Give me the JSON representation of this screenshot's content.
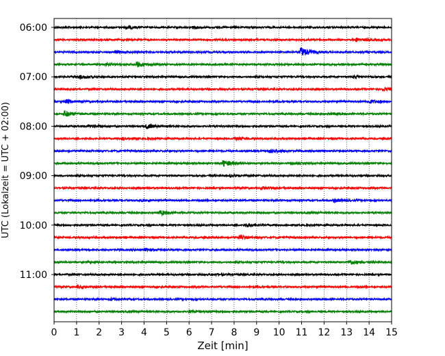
{
  "chart_data": {
    "type": "line",
    "title": "",
    "xlabel": "Zeit  [min]",
    "ylabel": "UTC (Lokalzeit = UTC + 02:00)",
    "xlim": [
      0,
      15
    ],
    "x_ticks": [
      0,
      1,
      2,
      3,
      4,
      5,
      6,
      7,
      8,
      9,
      10,
      11,
      12,
      13,
      14,
      15
    ],
    "x_grid": true,
    "y_tick_labels": [
      "06:00",
      "07:00",
      "08:00",
      "09:00",
      "10:00",
      "11:00"
    ],
    "trace_interval_min": 15,
    "colors": [
      "#000000",
      "#ff0000",
      "#0000ff",
      "#008000"
    ],
    "series": [
      {
        "start": "06:00",
        "color": "#000000",
        "events": [
          {
            "x": 3.2,
            "amp": 0.25
          },
          {
            "x": 6.1,
            "amp": 0.2
          }
        ]
      },
      {
        "start": "06:15",
        "color": "#ff0000",
        "events": [
          {
            "x": 13.4,
            "amp": 0.3
          }
        ]
      },
      {
        "start": "06:30",
        "color": "#0000ff",
        "events": [
          {
            "x": 2.7,
            "amp": 0.2
          },
          {
            "x": 10.95,
            "amp": 0.85
          }
        ]
      },
      {
        "start": "06:45",
        "color": "#008000",
        "events": [
          {
            "x": 2.3,
            "amp": 0.15
          },
          {
            "x": 3.65,
            "amp": 0.45
          }
        ]
      },
      {
        "start": "07:00",
        "color": "#000000",
        "events": [
          {
            "x": 1.1,
            "amp": 0.3
          },
          {
            "x": 13.3,
            "amp": 0.2
          }
        ]
      },
      {
        "start": "07:15",
        "color": "#ff0000",
        "events": [
          {
            "x": 14.6,
            "amp": 0.25
          }
        ]
      },
      {
        "start": "07:30",
        "color": "#0000ff",
        "events": [
          {
            "x": 0.5,
            "amp": 0.3
          },
          {
            "x": 14.0,
            "amp": 0.25
          }
        ]
      },
      {
        "start": "07:45",
        "color": "#008000",
        "events": [
          {
            "x": 0.45,
            "amp": 0.55
          },
          {
            "x": 12.2,
            "amp": 0.15
          }
        ]
      },
      {
        "start": "08:00",
        "color": "#000000",
        "events": [
          {
            "x": 4.1,
            "amp": 0.4
          },
          {
            "x": 1.5,
            "amp": 0.2
          }
        ]
      },
      {
        "start": "08:15",
        "color": "#ff0000",
        "events": [
          {
            "x": 3.0,
            "amp": 0.2
          },
          {
            "x": 8.0,
            "amp": 0.25
          }
        ]
      },
      {
        "start": "08:30",
        "color": "#0000ff",
        "events": [
          {
            "x": 9.6,
            "amp": 0.35
          }
        ]
      },
      {
        "start": "08:45",
        "color": "#008000",
        "events": [
          {
            "x": 7.5,
            "amp": 0.55
          },
          {
            "x": 10.5,
            "amp": 0.2
          }
        ]
      },
      {
        "start": "09:00",
        "color": "#000000",
        "events": [
          {
            "x": 7.8,
            "amp": 0.2
          }
        ]
      },
      {
        "start": "09:15",
        "color": "#ff0000",
        "events": [
          {
            "x": 9.2,
            "amp": 0.25
          }
        ]
      },
      {
        "start": "09:30",
        "color": "#0000ff",
        "events": [
          {
            "x": 12.4,
            "amp": 0.3
          },
          {
            "x": 3.8,
            "amp": 0.15
          }
        ]
      },
      {
        "start": "09:45",
        "color": "#008000",
        "events": [
          {
            "x": 4.7,
            "amp": 0.4
          }
        ]
      },
      {
        "start": "10:00",
        "color": "#000000",
        "events": [
          {
            "x": 8.5,
            "amp": 0.35
          }
        ]
      },
      {
        "start": "10:15",
        "color": "#ff0000",
        "events": [
          {
            "x": 8.2,
            "amp": 0.3
          }
        ]
      },
      {
        "start": "10:30",
        "color": "#0000ff",
        "events": [
          {
            "x": 4.0,
            "amp": 0.2
          }
        ]
      },
      {
        "start": "10:45",
        "color": "#008000",
        "events": [
          {
            "x": 13.1,
            "amp": 0.45
          },
          {
            "x": 1.5,
            "amp": 0.15
          }
        ]
      },
      {
        "start": "11:00",
        "color": "#000000",
        "events": [
          {
            "x": 7.0,
            "amp": 0.15
          }
        ]
      },
      {
        "start": "11:15",
        "color": "#ff0000",
        "events": [
          {
            "x": 1.0,
            "amp": 0.2
          }
        ]
      },
      {
        "start": "11:30",
        "color": "#0000ff",
        "events": [
          {
            "x": 2.5,
            "amp": 0.2
          }
        ]
      },
      {
        "start": "11:45",
        "color": "#008000",
        "events": [
          {
            "x": 6.0,
            "amp": 0.25
          }
        ]
      }
    ]
  }
}
